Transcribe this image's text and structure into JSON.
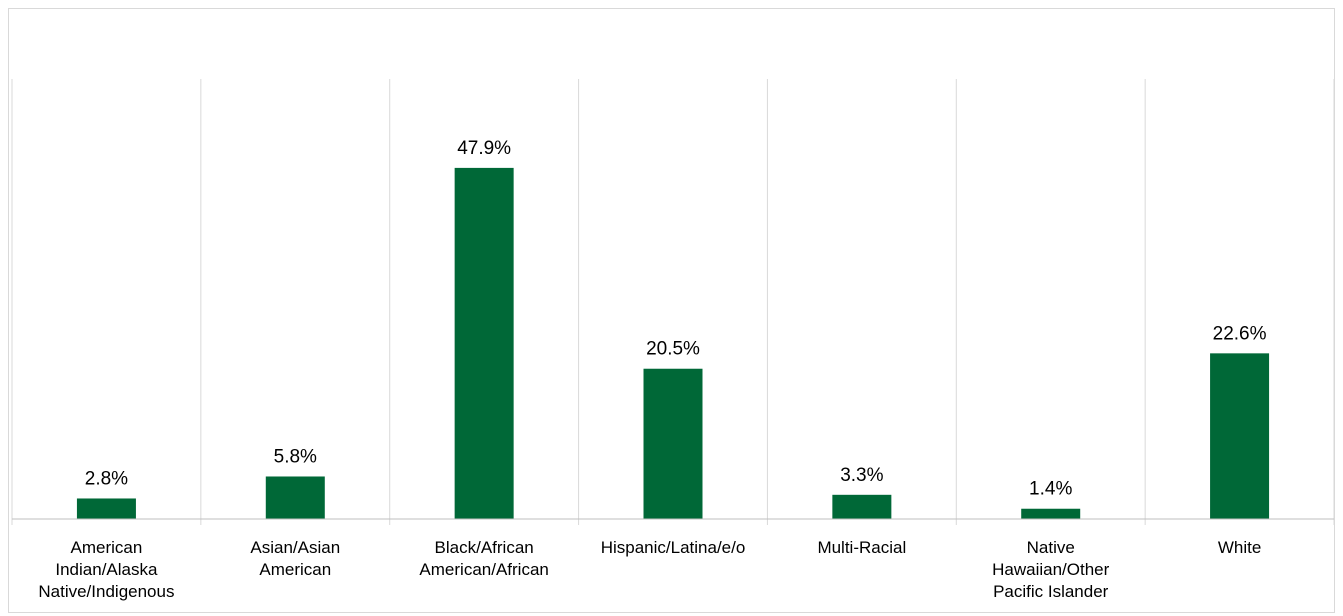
{
  "chart_data": {
    "type": "bar",
    "categories": [
      "American Indian/Alaska Native/Indigenous",
      "Asian/Asian American",
      "Black/African American/African",
      "Hispanic/Latina/e/o",
      "Multi-Racial",
      "Native Hawaiian/Other Pacific Islander",
      "White"
    ],
    "category_lines": [
      [
        "American",
        "Indian/Alaska",
        "Native/Indigenous"
      ],
      [
        "Asian/Asian",
        "American"
      ],
      [
        "Black/African",
        "American/African"
      ],
      [
        "Hispanic/Latina/e/o"
      ],
      [
        "Multi-Racial"
      ],
      [
        "Native",
        "Hawaiian/Other",
        "Pacific Islander"
      ],
      [
        "White"
      ]
    ],
    "values": [
      2.8,
      5.8,
      47.9,
      20.5,
      3.3,
      1.4,
      22.6
    ],
    "data_labels": [
      "2.8%",
      "5.8%",
      "47.9%",
      "20.5%",
      "3.3%",
      "1.4%",
      "22.6%"
    ],
    "title": "",
    "xlabel": "",
    "ylabel": "",
    "ylim": [
      0,
      60
    ],
    "grid": "vertical category separators",
    "legend": "none",
    "bar_color": "#006837",
    "grid_color": "#d9d9d9",
    "axis_color": "#bfbfbf"
  }
}
